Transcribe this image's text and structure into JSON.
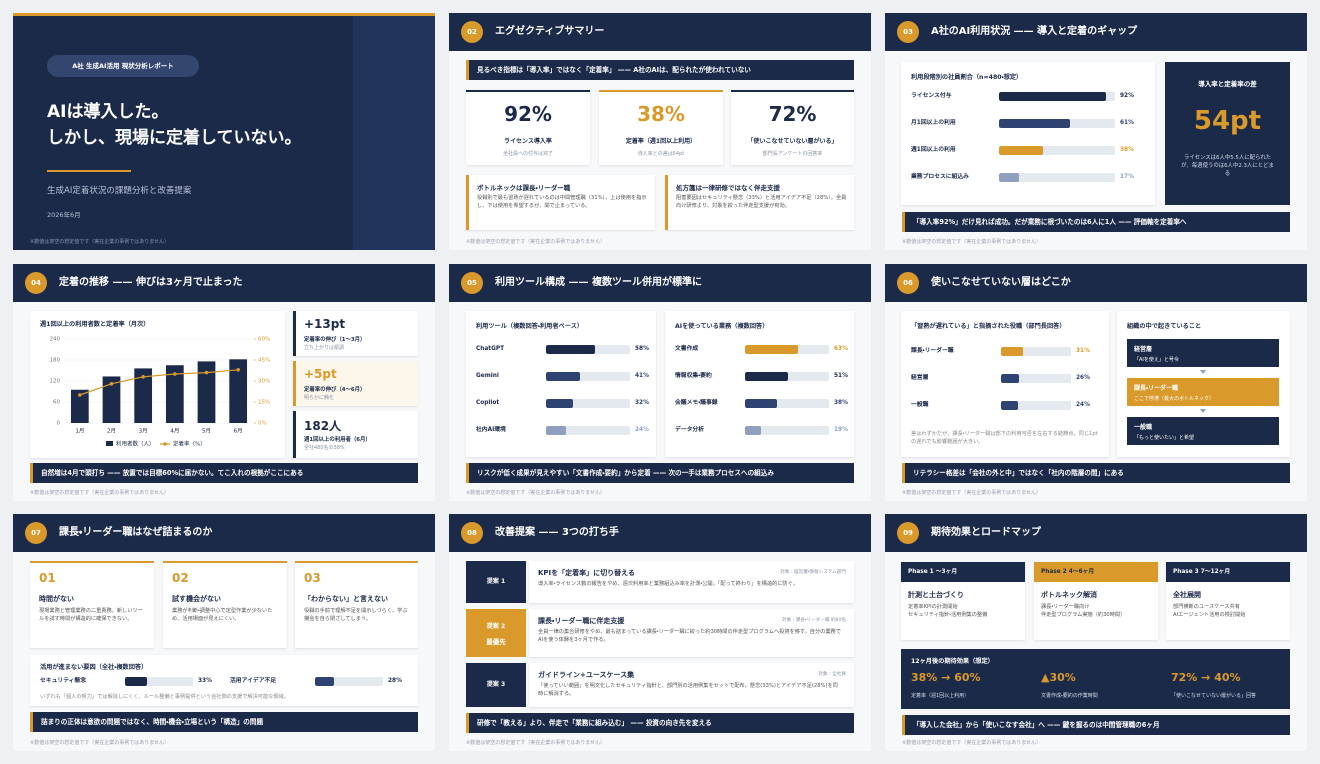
{
  "footnote": "※数値は架空の想定値です（実在企業の事例ではありません）",
  "slides": [
    {
      "badge": "A社 生成AI活用 現状分析レポート",
      "title_lines": [
        "AIは導入した。",
        "しかし、現場に定着していない。"
      ],
      "subtitle": "生成AI定着状況の課題分析と改善提案",
      "date": "2026年6月"
    },
    {
      "number": "02",
      "title": "エグゼクティブサマリー",
      "lead": "見るべき指標は「導入率」ではなく「定着率」 —— A社のAIは、配られたが使われていない",
      "kpis": [
        {
          "value": "92%",
          "label": "ライセンス導入率",
          "note": "全社員への付与は完了"
        },
        {
          "value": "38%",
          "label": "定着率（週1回以上利用）",
          "note": "導入率との差は54pt"
        },
        {
          "value": "72%",
          "label": "「使いこなせていない層がいる」",
          "note": "部門長アンケートの回答率"
        }
      ],
      "points": [
        {
          "title": "ボトルネックは課長・リーダー職",
          "body": "役職別で最も習熟が遅れているのは中間管理職（31%）。上は使用を指示し、下は使用を希望するが、間で止まっている。"
        },
        {
          "title": "処方箋は一律研修ではなく伴走支援",
          "body": "阻害要因はセキュリティ懸念（33%）と活用アイデア不足（28%）。全員向け研修より、対象を絞った伴走型支援が有効。"
        }
      ]
    },
    {
      "number": "03",
      "title": "A社のAI利用状況 —— 導入と定着のギャップ",
      "chart": {
        "title": "利用段階別の社員割合（n=480・想定）",
        "categories": [
          "ライセンス付与",
          "月1回以上の利用",
          "週1回以上の利用",
          "業務プロセスに組込み"
        ],
        "values": [
          92,
          61,
          38,
          17
        ],
        "value_labels": [
          "92%",
          "61%",
          "38%",
          "17%"
        ],
        "colors": [
          "#1c2a4a",
          "#2f4373",
          "#d99a2b",
          "#8f9fbd"
        ]
      },
      "gap": {
        "label": "導入率と定着率の差",
        "value": "54pt",
        "note": "ライセンスは6人中5.5人に配られたが、毎週使うのは6人中2.3人にとどまる"
      },
      "conclusion": "「導入率92%」だけ見れば成功。だが業務に根づいたのは6人に1人 —— 評価軸を定着率へ"
    },
    {
      "number": "04",
      "title": "定着の推移 —— 伸びは3ヶ月で止まった",
      "chart": {
        "type": "bar",
        "title": "週1回以上の利用者数と定着率（月次）",
        "categories": [
          "1月",
          "2月",
          "3月",
          "4月",
          "5月",
          "6月"
        ],
        "series": [
          {
            "name": "利用者数（人）",
            "color": "#1c2a4a",
            "values": [
              95,
              133,
              156,
              165,
              176,
              182
            ]
          },
          {
            "name": "定着率（%）",
            "color": "#d99a2b",
            "values": [
              20,
              28,
              33,
              35,
              36,
              38
            ],
            "axis": "y2"
          }
        ],
        "ylim": [
          0,
          240
        ],
        "yticks": [
          0,
          60,
          120,
          180,
          240
        ],
        "y2lim": [
          0,
          60
        ],
        "y2ticks": [
          {
            "value": 0,
            "label": "0%"
          },
          {
            "value": 15,
            "label": "15%"
          },
          {
            "value": 30,
            "label": "30%"
          },
          {
            "value": 45,
            "label": "45%"
          },
          {
            "value": 60,
            "label": "60%"
          }
        ],
        "grid": true
      },
      "kpis": [
        {
          "value": "+13pt",
          "label": "定着率の伸び（1〜3月）",
          "note": "立ち上がりは順調"
        },
        {
          "value": "+5pt",
          "label": "定着率の伸び（4〜6月）",
          "note": "明らかに鈍化"
        },
        {
          "value": "182人",
          "label": "週1回以上の利用者（6月）",
          "note": "全社480名の38%"
        }
      ],
      "conclusion": "自然増は4月で頭打ち —— 放置では目標60%に届かない。てこ入れの根拠がここにある"
    },
    {
      "number": "05",
      "title": "利用ツール構成 —— 複数ツール併用が標準に",
      "charts": [
        {
          "title": "利用ツール（複数回答・利用者ベース）",
          "categories": [
            "ChatGPT",
            "Gemini",
            "Copilot",
            "社内AI環境"
          ],
          "values": [
            58,
            41,
            32,
            24
          ],
          "value_labels": [
            "58%",
            "41%",
            "32%",
            "24%"
          ],
          "colors": [
            "#1c2a4a",
            "#2f4373",
            "#2f4373",
            "#8f9fbd"
          ]
        },
        {
          "title": "AIを使っている業務（複数回答）",
          "categories": [
            "文書作成",
            "情報収集・要約",
            "会議メモ・議事録",
            "データ分析"
          ],
          "values": [
            63,
            51,
            38,
            19
          ],
          "value_labels": [
            "63%",
            "51%",
            "38%",
            "19%"
          ],
          "colors": [
            "#d99a2b",
            "#1c2a4a",
            "#2f4373",
            "#8f9fbd"
          ]
        }
      ],
      "conclusion": "リスクが低く成果が見えやすい「文書作成・要約」から定着 —— 次の一手は業務プロセスへの組込み"
    },
    {
      "number": "06",
      "title": "使いこなせていない層はどこか",
      "chart": {
        "title": "「習熟が遅れている」と指摘された役職（部門長回答）",
        "categories": [
          "課長・リーダー職",
          "経営層",
          "一般職"
        ],
        "values": [
          31,
          26,
          24
        ],
        "value_labels": [
          "31%",
          "26%",
          "24%"
        ],
        "colors": [
          "#d99a2b",
          "#2f4373",
          "#2f4373"
        ],
        "note": "差はわずかだが、課長・リーダー職は部下の利用可否を左右する結節点。同じ1ptの遅れでも影響範囲が大きい。"
      },
      "flow": {
        "title": "組織の中で起きていること",
        "steps": [
          {
            "role": "経営層",
            "text": "「AIを使え」と号令"
          },
          {
            "role": "課長・リーダー職",
            "text": "ここで停滞（最大のボトルネック）"
          },
          {
            "role": "一般職",
            "text": "「もっと使いたい」と希望"
          }
        ]
      },
      "conclusion": "リテラシー格差は「会社の外と中」ではなく「社内の階層の間」にある"
    },
    {
      "number": "07",
      "title": "課長・リーダー職はなぜ詰まるのか",
      "causes": [
        {
          "number": "01",
          "title": "時間がない",
          "body": "現場業務と管理業務の二重責務。新しいツールを試す時間が構造的に確保できない。"
        },
        {
          "number": "02",
          "title": "試す機会がない",
          "body": "業務が判断・調整中心で定型作業が少ないため、活用場面が見えにくい。"
        },
        {
          "number": "03",
          "title": "「わからない」と言えない",
          "body": "役職の手前で理解不足を開示しづらく、学ぶ機会を自ら閉ざしてしまう。"
        }
      ],
      "chart": {
        "title": "活用が進まない要因（全社・複数回答）",
        "categories": [
          "セキュリティ懸念",
          "活用アイデア不足"
        ],
        "values": [
          33,
          28
        ],
        "value_labels": [
          "33%",
          "28%"
        ],
        "colors": [
          "#1c2a4a",
          "#2f4373"
        ],
        "note": "いずれも「個人の努力」では解消しにくく、ルール整備と事例提供という会社側の支援で解決可能な領域。"
      },
      "conclusion": "詰まりの正体は意欲の問題ではなく、時間・機会・立場という「構造」の問題"
    },
    {
      "number": "08",
      "title": "改善提案 —— 3つの打ち手",
      "proposals": [
        {
          "label": "提案 1",
          "title": "KPIを「定着率」に切り替える",
          "target": "対象：経営層・情報システム部門",
          "body": "導入率・ライセンス数の報告をやめ、週次利用率と業務組込み率を計測・公開。「配って終わり」を構造的に防ぐ。"
        },
        {
          "label": "提案 2",
          "priority": "最優先",
          "title": "課長・リーダー職に伴走支援",
          "target": "対象：課長・リーダー職 約80名",
          "body": "全員一律の集合研修をやめ、最も詰まっている課長・リーダー職に絞った約30時間の伴走型プログラムへ投資を移す。自分の業務でAIを使う体験を3ヶ月で作る。"
        },
        {
          "label": "提案 3",
          "title": "ガイドライン+ユースケース集",
          "target": "対象：全社員",
          "body": "「使っていい範囲」を明文化したセキュリティ指針と、部門別の活用例集をセットで配布。懸念(33%)とアイデア不足(28%)を同時に解消する。"
        }
      ],
      "conclusion": "研修で「教える」より、伴走で「業務に組み込む」 —— 投資の向き先を変える"
    },
    {
      "number": "09",
      "title": "期待効果とロードマップ",
      "phases": [
        {
          "label": "Phase 1 〜3ヶ月",
          "title": "計測と土台づくり",
          "body": "定着率KPIの計測開始\nセキュリティ指針・活用例集の整備"
        },
        {
          "label": "Phase 2 4〜6ヶ月",
          "title": "ボトルネック解消",
          "body": "課長・リーダー職向け\n伴走型プログラム実施（約30時間）"
        },
        {
          "label": "Phase 3 7〜12ヶ月",
          "title": "全社展開",
          "body": "部門横断のユースケース共有\nAIエージェント活用の検討開始"
        }
      ],
      "effects": {
        "title": "12ヶ月後の期待効果（想定）",
        "items": [
          {
            "value": "38% → 60%",
            "label": "定着率（週1回以上利用）"
          },
          {
            "value": "▲30%",
            "label": "文書作成・要約の作業時間"
          },
          {
            "value": "72% → 40%",
            "label": "「使いこなせていない層がいる」回答"
          }
        ]
      },
      "conclusion": "「導入した会社」から「使いこなす会社」へ —— 鍵を握るのは中間管理職の6ヶ月"
    }
  ]
}
